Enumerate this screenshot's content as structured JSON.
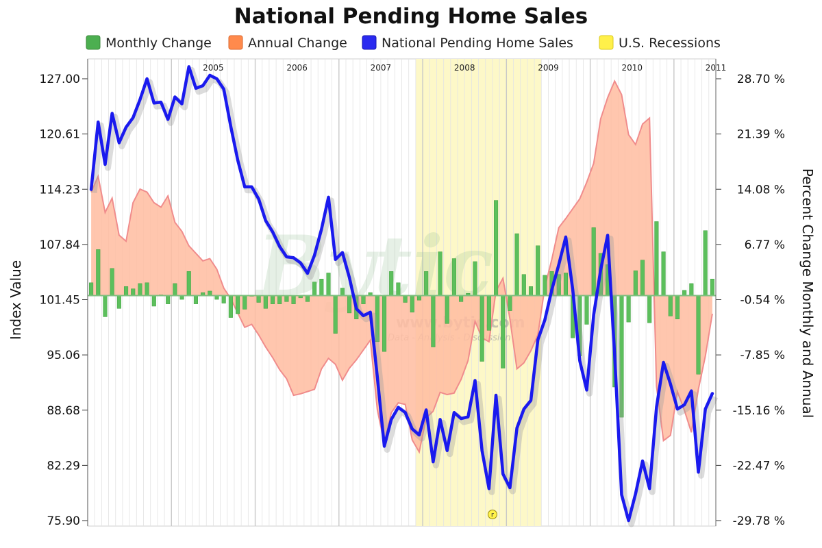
{
  "chart_data": {
    "type": "combo",
    "title": "National Pending Home Sales",
    "legend": [
      {
        "name": "Monthly Change",
        "color": "#4caf50"
      },
      {
        "name": "Annual Change",
        "color": "#ff8a4c"
      },
      {
        "name": "National Pending Home Sales",
        "color": "#2a2af0"
      },
      {
        "name": "U.S. Recessions",
        "color": "#fff04a"
      }
    ],
    "y_left": {
      "label": "Index Value",
      "ticks": [
        "127.00",
        "120.61",
        "114.23",
        "107.84",
        "101.45",
        "95.06",
        "88.68",
        "82.29",
        "75.90"
      ],
      "range": [
        75.9,
        127.0
      ]
    },
    "y_right": {
      "label": "Percent Change Monthly and Annual",
      "ticks": [
        "28.70 %",
        "21.39 %",
        "14.08 %",
        "6.77 %",
        "-0.54 %",
        "-7.85 %",
        "-15.16 %",
        "-22.47 %",
        "-29.78 %"
      ],
      "range": [
        -29.78,
        28.7
      ]
    },
    "years": [
      "2005",
      "2006",
      "2007",
      "2008",
      "2009",
      "2010",
      "2011"
    ],
    "x_start": "2004-01",
    "months": 90,
    "recession": {
      "start_index": 47,
      "end_index": 65,
      "marker": "r"
    },
    "series": [
      {
        "name": "National Pending Home Sales",
        "axis": "left",
        "values": [
          114.2,
          122.0,
          117.1,
          123.0,
          119.6,
          121.4,
          122.5,
          124.6,
          127.0,
          124.2,
          124.3,
          122.3,
          124.9,
          124.1,
          128.4,
          125.9,
          126.2,
          127.4,
          127.0,
          125.8,
          121.5,
          117.6,
          114.5,
          114.5,
          113.1,
          110.6,
          109.3,
          107.6,
          106.4,
          106.3,
          105.7,
          104.5,
          106.6,
          109.6,
          113.3,
          106.1,
          106.9,
          104.0,
          100.4,
          99.6,
          100.0,
          92.5,
          84.5,
          87.6,
          89.0,
          88.4,
          86.5,
          85.8,
          88.7,
          82.7,
          87.6,
          84.0,
          88.4,
          87.7,
          87.9,
          92.1,
          84.0,
          79.6,
          90.4,
          81.3,
          79.7,
          86.6,
          88.8,
          89.8,
          96.8,
          99.1,
          102.6,
          105.5,
          108.7,
          102.6,
          94.4,
          91.0,
          99.7,
          104.9,
          108.9,
          95.1,
          78.9,
          75.9,
          79.0,
          82.8,
          79.6,
          89.0,
          94.2,
          91.7,
          88.8,
          89.3,
          90.9,
          81.5,
          88.8,
          90.6
        ]
      },
      {
        "name": "Monthly Change",
        "axis": "right",
        "values": [
          1.7,
          6.1,
          -2.8,
          3.6,
          -1.7,
          1.2,
          0.9,
          1.6,
          1.7,
          -1.4,
          0.1,
          -1.1,
          1.6,
          -0.5,
          3.2,
          -1.1,
          0.4,
          0.6,
          -0.5,
          -1.0,
          -2.9,
          -2.4,
          -1.8,
          0.0,
          -0.9,
          -1.7,
          -1.1,
          -1.1,
          -0.8,
          -1.1,
          -0.3,
          -0.8,
          1.8,
          2.2,
          3.0,
          -5.0,
          1.0,
          -2.3,
          -3.1,
          -1.1,
          0.4,
          -6.1,
          -7.4,
          3.2,
          1.7,
          -0.9,
          -2.2,
          -0.6,
          3.2,
          -6.8,
          5.8,
          -3.7,
          4.9,
          -0.8,
          0.3,
          4.5,
          -8.7,
          -4.6,
          12.6,
          -9.6,
          -2.0,
          8.2,
          2.8,
          1.2,
          6.6,
          2.7,
          3.2,
          2.8,
          3.0,
          -5.6,
          -8.0,
          -3.8,
          9.0,
          5.6,
          4.1,
          -12.1,
          -16.1,
          -3.5,
          3.3,
          4.7,
          -3.6,
          9.8,
          5.8,
          -2.7,
          -3.1,
          0.7,
          1.6,
          -10.4,
          8.6,
          2.2
        ]
      },
      {
        "name": "Annual Change",
        "axis": "right",
        "values": [
          13.7,
          15.8,
          11.0,
          12.9,
          8.0,
          7.2,
          12.3,
          14.1,
          13.7,
          12.3,
          11.7,
          13.2,
          9.7,
          8.5,
          6.6,
          5.6,
          4.6,
          4.9,
          3.5,
          1.0,
          -0.4,
          -2.3,
          -4.2,
          -3.8,
          -5.2,
          -6.8,
          -8.2,
          -9.8,
          -11.0,
          -13.2,
          -13.0,
          -12.7,
          -12.4,
          -9.7,
          -8.3,
          -9.1,
          -11.2,
          -9.6,
          -8.5,
          -7.2,
          -5.9,
          -15.1,
          -19.6,
          -15.5,
          -14.2,
          -14.4,
          -19.1,
          -20.7,
          -16.2,
          -15.3,
          -12.8,
          -13.1,
          -12.9,
          -11.1,
          -8.6,
          -3.4,
          -5.6,
          -6.1,
          0.6,
          2.3,
          -3.1,
          -9.7,
          -8.9,
          -7.3,
          -5.2,
          1.1,
          4.8,
          9.0,
          10.2,
          11.5,
          12.8,
          15.0,
          17.5,
          23.4,
          26.2,
          28.4,
          26.6,
          21.3,
          20.0,
          22.7,
          23.5,
          -12.0,
          -19.2,
          -18.5,
          -12.7,
          -15.2,
          -18.1,
          -12.4,
          -8.0,
          -2.4
        ]
      }
    ]
  },
  "watermark": {
    "brand": "Bytic",
    "url": "www.bytic.com",
    "tagline": "Data - Analysis - Discussion"
  },
  "colors": {
    "line": "#1a1aee",
    "monthly_fill": "#5cbf5c",
    "monthly_edge": "#3f9f3f",
    "annual_fill": "#ffbca0",
    "annual_edge": "#f08c8c",
    "recession": "#fdf8c8",
    "grid": "#e3e3e3",
    "zero": "#7fbf7f"
  }
}
